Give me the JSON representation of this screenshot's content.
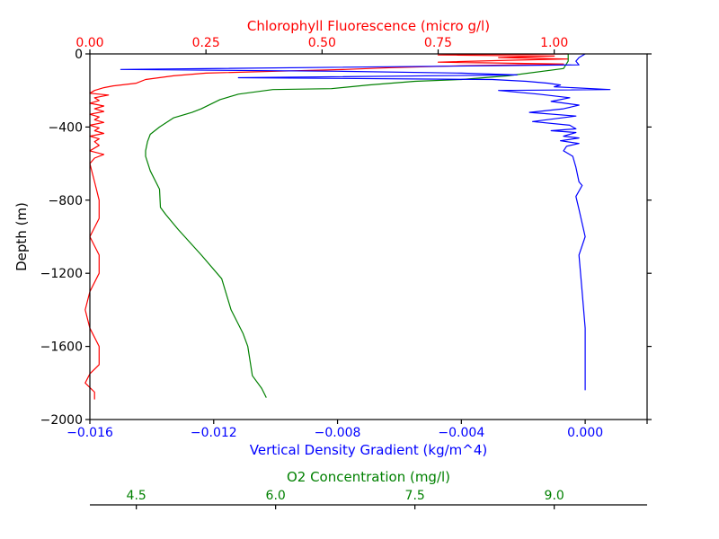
{
  "chart_data": {
    "type": "line",
    "title": "",
    "y_axis": {
      "label": "Depth (m)",
      "range": [
        -2000,
        0
      ],
      "ticks": [
        0,
        -400,
        -800,
        -1200,
        -1600,
        -2000
      ],
      "tick_labels": [
        "0",
        "−400",
        "−800",
        "−1200",
        "−1600",
        "−2000"
      ]
    },
    "x_axes": [
      {
        "id": "density",
        "label": "Vertical Density Gradient (kg/m^4)",
        "position": "bottom",
        "color": "#0000ff",
        "range": [
          -0.016,
          0.002
        ],
        "ticks": [
          -0.016,
          -0.012,
          -0.008,
          -0.004,
          0.0
        ],
        "tick_labels": [
          "−0.016",
          "−0.012",
          "−0.008",
          "−0.004",
          "0.000"
        ]
      },
      {
        "id": "chlorophyll",
        "label": "Chlorophyll Fluorescence (micro g/l)",
        "position": "top",
        "color": "#ff0000",
        "range": [
          0.0,
          1.2
        ],
        "ticks": [
          0.0,
          0.25,
          0.5,
          0.75,
          1.0
        ],
        "tick_labels": [
          "0.00",
          "0.25",
          "0.50",
          "0.75",
          "1.00"
        ]
      },
      {
        "id": "o2",
        "label": "O2 Concentration (mg/l)",
        "position": "bottom-offset",
        "color": "#008000",
        "range": [
          4.0,
          10.0
        ],
        "ticks": [
          4.5,
          6.0,
          7.5,
          9.0
        ],
        "tick_labels": [
          "4.5",
          "6.0",
          "7.5",
          "9.0"
        ]
      }
    ],
    "grid": false,
    "series": [
      {
        "axis": "chlorophyll",
        "color": "#ff0000",
        "points": [
          [
            1.03,
            0
          ],
          [
            0.75,
            -6
          ],
          [
            1.0,
            -12
          ],
          [
            0.88,
            -20
          ],
          [
            1.03,
            -28
          ],
          [
            0.9,
            -35
          ],
          [
            0.75,
            -45
          ],
          [
            1.02,
            -55
          ],
          [
            0.8,
            -65
          ],
          [
            0.65,
            -75
          ],
          [
            0.55,
            -85
          ],
          [
            0.4,
            -95
          ],
          [
            0.25,
            -105
          ],
          [
            0.18,
            -120
          ],
          [
            0.12,
            -140
          ],
          [
            0.1,
            -160
          ],
          [
            0.05,
            -175
          ],
          [
            0.03,
            -185
          ],
          [
            0.01,
            -200
          ],
          [
            0.0,
            -215
          ],
          [
            0.04,
            -225
          ],
          [
            0.01,
            -240
          ],
          [
            0.02,
            -255
          ],
          [
            0.0,
            -270
          ],
          [
            0.03,
            -285
          ],
          [
            0.01,
            -300
          ],
          [
            0.03,
            -315
          ],
          [
            0.0,
            -330
          ],
          [
            0.02,
            -345
          ],
          [
            0.01,
            -360
          ],
          [
            0.03,
            -375
          ],
          [
            0.0,
            -390
          ],
          [
            0.02,
            -405
          ],
          [
            0.01,
            -420
          ],
          [
            0.03,
            -435
          ],
          [
            0.0,
            -450
          ],
          [
            0.02,
            -465
          ],
          [
            0.01,
            -480
          ],
          [
            0.02,
            -500
          ],
          [
            0.0,
            -530
          ],
          [
            0.03,
            -550
          ],
          [
            0.01,
            -570
          ],
          [
            0.0,
            -600
          ],
          [
            0.01,
            -700
          ],
          [
            0.02,
            -800
          ],
          [
            0.02,
            -900
          ],
          [
            0.0,
            -1000
          ],
          [
            0.02,
            -1100
          ],
          [
            0.02,
            -1200
          ],
          [
            0.0,
            -1300
          ],
          [
            -0.01,
            -1400
          ],
          [
            0.0,
            -1500
          ],
          [
            0.02,
            -1600
          ],
          [
            0.02,
            -1700
          ],
          [
            0.0,
            -1750
          ],
          [
            -0.01,
            -1800
          ],
          [
            0.01,
            -1850
          ],
          [
            0.01,
            -1890
          ]
        ]
      },
      {
        "axis": "o2",
        "color": "#008000",
        "points": [
          [
            9.15,
            0
          ],
          [
            9.15,
            -40
          ],
          [
            9.1,
            -80
          ],
          [
            8.5,
            -120
          ],
          [
            8.0,
            -140
          ],
          [
            7.5,
            -150
          ],
          [
            7.0,
            -170
          ],
          [
            6.6,
            -190
          ],
          [
            5.97,
            -195
          ],
          [
            5.6,
            -220
          ],
          [
            5.4,
            -250
          ],
          [
            5.2,
            -300
          ],
          [
            5.1,
            -320
          ],
          [
            4.9,
            -350
          ],
          [
            4.75,
            -400
          ],
          [
            4.65,
            -440
          ],
          [
            4.62,
            -480
          ],
          [
            4.6,
            -530
          ],
          [
            4.6,
            -560
          ],
          [
            4.65,
            -640
          ],
          [
            4.75,
            -740
          ],
          [
            4.76,
            -840
          ],
          [
            4.82,
            -880
          ],
          [
            4.95,
            -960
          ],
          [
            5.2,
            -1100
          ],
          [
            5.42,
            -1230
          ],
          [
            5.52,
            -1400
          ],
          [
            5.65,
            -1530
          ],
          [
            5.7,
            -1600
          ],
          [
            5.75,
            -1760
          ],
          [
            5.85,
            -1830
          ],
          [
            5.9,
            -1880
          ]
        ]
      },
      {
        "axis": "density",
        "color": "#0000ff",
        "points": [
          [
            0.0,
            0
          ],
          [
            -0.0002,
            -20
          ],
          [
            -0.0003,
            -40
          ],
          [
            -0.0002,
            -60
          ],
          [
            -0.015,
            -85
          ],
          [
            -0.008,
            -95
          ],
          [
            -0.004,
            -105
          ],
          [
            -0.0022,
            -115
          ],
          [
            -0.0112,
            -130
          ],
          [
            -0.003,
            -140
          ],
          [
            -0.0019,
            -150
          ],
          [
            -0.0012,
            -160
          ],
          [
            -0.0008,
            -170
          ],
          [
            -0.001,
            -180
          ],
          [
            0.0008,
            -195
          ],
          [
            -0.0028,
            -200
          ],
          [
            -0.0015,
            -220
          ],
          [
            -0.0005,
            -240
          ],
          [
            -0.0011,
            -260
          ],
          [
            -0.0002,
            -280
          ],
          [
            -0.0007,
            -300
          ],
          [
            -0.0018,
            -320
          ],
          [
            -0.0003,
            -340
          ],
          [
            -0.0017,
            -370
          ],
          [
            -0.0005,
            -390
          ],
          [
            -0.0003,
            -410
          ],
          [
            -0.0011,
            -420
          ],
          [
            -0.0003,
            -430
          ],
          [
            -0.0007,
            -450
          ],
          [
            -0.0002,
            -460
          ],
          [
            -0.0008,
            -475
          ],
          [
            -0.0002,
            -490
          ],
          [
            -0.0006,
            -505
          ],
          [
            -0.0007,
            -530
          ],
          [
            -0.0004,
            -560
          ],
          [
            -0.0003,
            -620
          ],
          [
            -0.0002,
            -700
          ],
          [
            -0.0001,
            -720
          ],
          [
            -0.0003,
            -780
          ],
          [
            -0.0002,
            -850
          ],
          [
            0.0,
            -1000
          ],
          [
            -0.0002,
            -1100
          ],
          [
            -0.0001,
            -1300
          ],
          [
            0.0,
            -1500
          ],
          [
            0.0,
            -1650
          ],
          [
            0.0,
            -1800
          ],
          [
            0.0,
            -1840
          ]
        ]
      }
    ]
  }
}
